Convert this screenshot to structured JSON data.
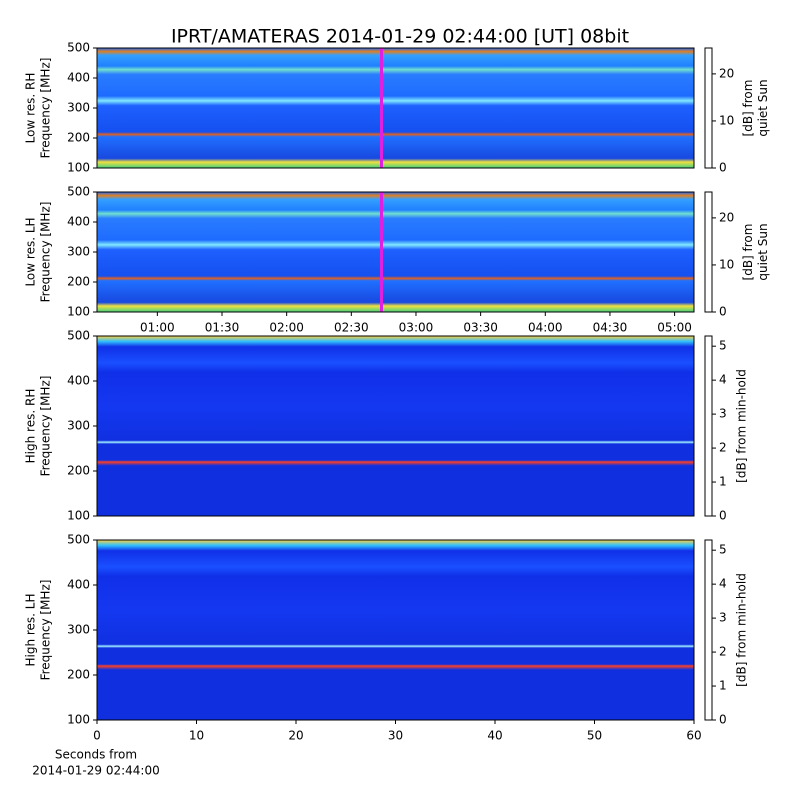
{
  "title": "IPRT/AMATERAS 2014-01-29 02:44:00 [UT]   08bit",
  "chart_data": [
    {
      "type": "heatmap",
      "ylabel": [
        "Low res. RH",
        "Frequency [MHz]"
      ],
      "ylim": [
        100,
        500
      ],
      "yticks": [
        100,
        200,
        300,
        400,
        500
      ],
      "xlim": [
        32,
        309
      ],
      "marker_x": 164,
      "colorbar_label": [
        "[dB] from",
        "quiet Sun"
      ],
      "clim": [
        0,
        25.5
      ],
      "cticks": [
        0,
        10,
        20
      ]
    },
    {
      "type": "heatmap",
      "ylabel": [
        "Low res. LH",
        "Frequency [MHz]"
      ],
      "ylim": [
        100,
        500
      ],
      "yticks": [
        100,
        200,
        300,
        400,
        500
      ],
      "xlim": [
        32,
        309
      ],
      "marker_x": 164,
      "xticks": [
        {
          "value": 60,
          "label": "01:00"
        },
        {
          "value": 90,
          "label": "01:30"
        },
        {
          "value": 120,
          "label": "02:00"
        },
        {
          "value": 150,
          "label": "02:30"
        },
        {
          "value": 180,
          "label": "03:00"
        },
        {
          "value": 210,
          "label": "03:30"
        },
        {
          "value": 240,
          "label": "04:00"
        },
        {
          "value": 270,
          "label": "04:30"
        },
        {
          "value": 300,
          "label": "05:00"
        }
      ],
      "colorbar_label": [
        "[dB] from",
        "quiet Sun"
      ],
      "clim": [
        0,
        25.5
      ],
      "cticks": [
        0,
        10,
        20
      ]
    },
    {
      "type": "heatmap",
      "ylabel": [
        "High res. RH",
        "Frequency [MHz]"
      ],
      "ylim": [
        100,
        500
      ],
      "yticks": [
        100,
        200,
        300,
        400,
        500
      ],
      "colorbar_label": [
        "[dB] from min-hold"
      ],
      "clim": [
        0,
        5.3
      ],
      "cticks": [
        0,
        1,
        2,
        3,
        4,
        5
      ]
    },
    {
      "type": "heatmap",
      "ylabel": [
        "High res. LH",
        "Frequency [MHz]"
      ],
      "ylim": [
        100,
        500
      ],
      "yticks": [
        100,
        200,
        300,
        400,
        500
      ],
      "xlim": [
        0,
        60
      ],
      "xticks": [
        0,
        10,
        20,
        30,
        40,
        50,
        60
      ],
      "xlabel": [
        "Seconds from",
        "2014-01-29 02:44:00"
      ],
      "colorbar_label": [
        "[dB] from min-hold"
      ],
      "clim": [
        0,
        5.3
      ],
      "cticks": [
        0,
        1,
        2,
        3,
        4,
        5
      ]
    }
  ]
}
